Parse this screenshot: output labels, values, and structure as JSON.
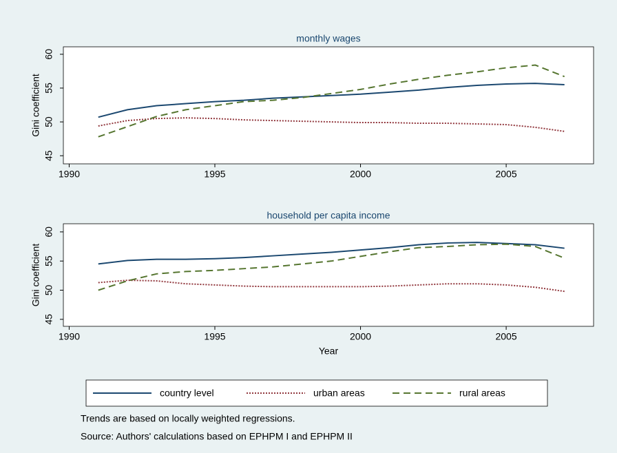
{
  "chart_data": {
    "type": "line",
    "x": [
      1991,
      1992,
      1993,
      1994,
      1995,
      1996,
      1997,
      1998,
      1999,
      2000,
      2001,
      2002,
      2003,
      2004,
      2005,
      2006,
      2007
    ],
    "xlim": [
      1989.8,
      2008
    ],
    "xticks": [
      1990,
      1995,
      2000,
      2005
    ],
    "xlabel": "Year",
    "series": [
      {
        "name": "country level",
        "color": "#1a476f",
        "dash": "none"
      },
      {
        "name": "urban areas",
        "color": "#90353b",
        "dash": "2,2"
      },
      {
        "name": "rural areas",
        "color": "#55752f",
        "dash": "10,6"
      }
    ],
    "panels": [
      {
        "title": "monthly wages",
        "ylabel": "Gini coefficient",
        "ylim": [
          43.8,
          61.1
        ],
        "yticks": [
          45,
          50,
          55,
          60
        ],
        "values": [
          [
            50.7,
            51.8,
            52.4,
            52.7,
            53.0,
            53.2,
            53.5,
            53.7,
            53.9,
            54.1,
            54.4,
            54.7,
            55.1,
            55.4,
            55.6,
            55.7,
            55.5
          ],
          [
            49.4,
            50.2,
            50.5,
            50.6,
            50.5,
            50.3,
            50.2,
            50.1,
            50.0,
            49.9,
            49.9,
            49.8,
            49.8,
            49.7,
            49.6,
            49.2,
            48.6
          ],
          [
            47.8,
            49.3,
            50.8,
            51.8,
            52.4,
            53.0,
            53.2,
            53.6,
            54.2,
            54.8,
            55.6,
            56.3,
            56.9,
            57.4,
            58.0,
            58.4,
            56.7
          ]
        ]
      },
      {
        "title": "household per capita income",
        "ylabel": "Gini coefficient",
        "ylim": [
          43.8,
          61.4
        ],
        "yticks": [
          45,
          50,
          55,
          60
        ],
        "values": [
          [
            54.5,
            55.1,
            55.3,
            55.3,
            55.4,
            55.6,
            55.9,
            56.2,
            56.5,
            56.9,
            57.3,
            57.8,
            58.1,
            58.2,
            58.0,
            57.8,
            57.2
          ],
          [
            51.3,
            51.7,
            51.6,
            51.1,
            50.9,
            50.7,
            50.6,
            50.6,
            50.6,
            50.6,
            50.7,
            50.9,
            51.1,
            51.1,
            50.9,
            50.5,
            49.8
          ],
          [
            50.0,
            51.6,
            52.8,
            53.2,
            53.4,
            53.7,
            54.0,
            54.5,
            55.0,
            55.8,
            56.6,
            57.3,
            57.5,
            57.8,
            57.9,
            57.5,
            55.5
          ]
        ]
      }
    ],
    "notes": [
      "Trends are based on locally weighted regressions.",
      "Source: Authors' calculations based on EPHPM I and EPHPM II"
    ]
  }
}
